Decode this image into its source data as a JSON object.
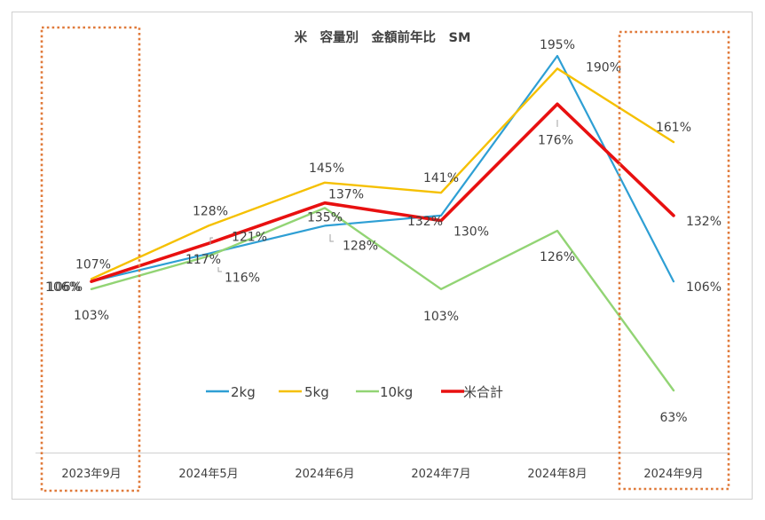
{
  "chart_data": {
    "type": "line",
    "title": "米　容量別　金額前年比　SM",
    "categories": [
      "2023年9月",
      "2024年5月",
      "2024年6月",
      "2024年7月",
      "2024年8月",
      "2024年9月"
    ],
    "series": [
      {
        "name": "2kg",
        "color": "#2e9fd4",
        "values": [
          106,
          117,
          128,
          132,
          195,
          106
        ],
        "labels": [
          "106%",
          "117%",
          "128%",
          "132%",
          "195%",
          "106%"
        ]
      },
      {
        "name": "5kg",
        "color": "#f5c000",
        "values": [
          107,
          128,
          145,
          141,
          190,
          161
        ],
        "labels": [
          "107%",
          "128%",
          "145%",
          "141%",
          "190%",
          "161%"
        ]
      },
      {
        "name": "10kg",
        "color": "#92d474",
        "values": [
          103,
          116,
          135,
          103,
          126,
          63
        ],
        "labels": [
          "103%",
          "116%",
          "135%",
          "103%",
          "126%",
          "63%"
        ]
      },
      {
        "name": "米合計",
        "color": "#e81010",
        "values": [
          106,
          121,
          137,
          130,
          176,
          132
        ],
        "labels": [
          "106%",
          "121%",
          "137%",
          "130%",
          "176%",
          "132%"
        ]
      }
    ],
    "ylim": [
      0,
      220
    ],
    "grid": false,
    "legend_position": "bottom-center",
    "highlighted_categories": [
      "2023年9月",
      "2024年9月"
    ],
    "highlight_color": "#e07a3a"
  }
}
